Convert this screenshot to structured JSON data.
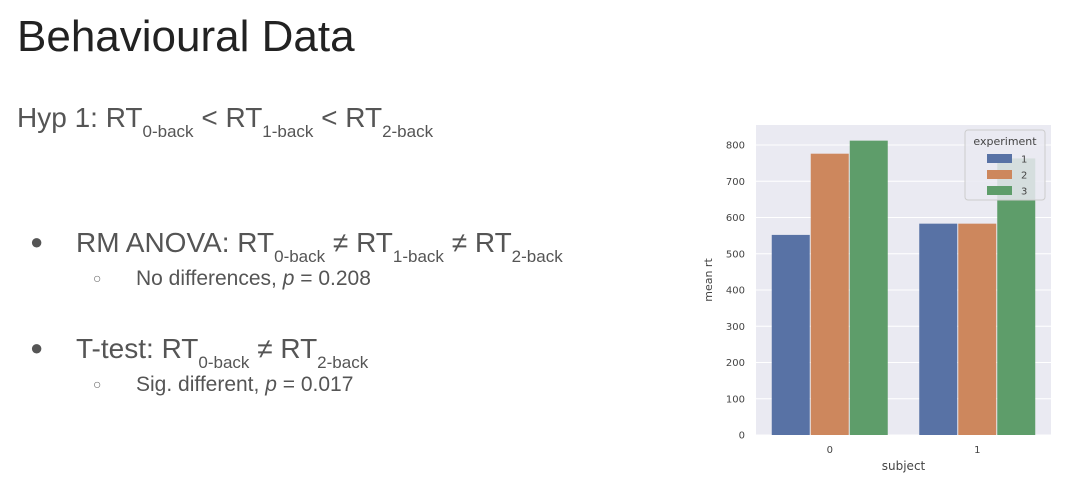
{
  "slide": {
    "title": "Behavioural Data",
    "hypothesis": {
      "prefix": "Hyp 1: RT",
      "sub1": "0-back",
      "mid1": " < RT",
      "sub2": "1-back",
      "mid2": " < RT",
      "sub3": "2-back"
    },
    "bullets": [
      {
        "main": {
          "prefix": "RM ANOVA: RT",
          "sub1": "0-back",
          "mid1": " ≠  RT",
          "sub2": "1-back",
          "mid2": " ≠ RT",
          "sub3": "2-back"
        },
        "sub": {
          "text": "No differences, ",
          "p": "p",
          "rest": " = 0.208"
        }
      },
      {
        "main": {
          "prefix": "T-test: RT",
          "sub1": "0-back",
          "mid1": " ≠ RT",
          "sub2": "2-back"
        },
        "sub": {
          "text": "Sig. different, ",
          "p": "p",
          "rest": " = 0.017"
        }
      }
    ]
  },
  "chart_data": {
    "type": "bar",
    "categories": [
      "0",
      "1"
    ],
    "xlabel": "subject",
    "ylabel": "mean rt",
    "ylim": [
      0,
      800
    ],
    "yticks": [
      "0",
      "100",
      "200",
      "300",
      "400",
      "500",
      "600",
      "700",
      "800"
    ],
    "grid": true,
    "legend": {
      "title": "experiment",
      "placement": "top-right"
    },
    "series": [
      {
        "name": "1",
        "color": "#5872a5",
        "values": [
          552,
          583
        ]
      },
      {
        "name": "2",
        "color": "#cd875d",
        "values": [
          776,
          583
        ]
      },
      {
        "name": "3",
        "color": "#5e9d6a",
        "values": [
          812,
          763
        ]
      }
    ],
    "colors": {
      "plot_background": "#eaeaf2",
      "grid": "#ffffff"
    }
  }
}
